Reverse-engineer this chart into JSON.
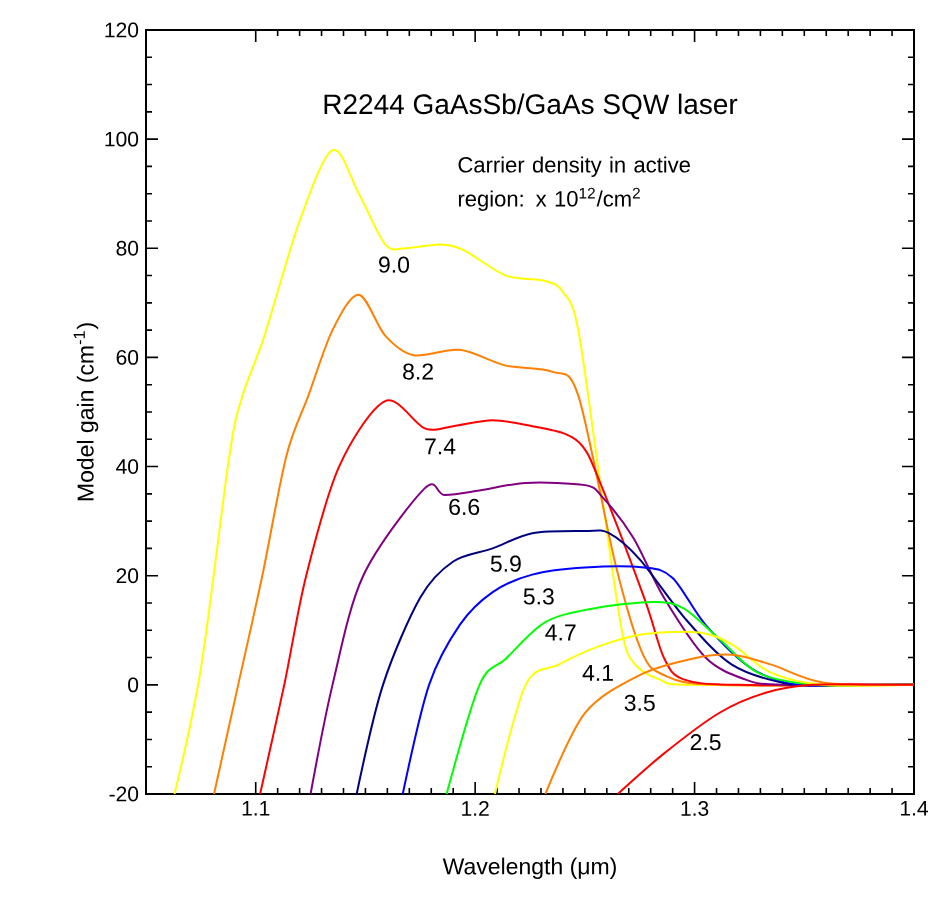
{
  "chart_data": {
    "type": "line",
    "title": "R2244 GaAsSb/GaAs SQW laser",
    "xlabel": "Wavelength (μm)",
    "ylabel": "Model gain (cm$^{-1}$)",
    "xlim": [
      1.05,
      1.4
    ],
    "xticks": [
      1.1,
      1.2,
      1.3,
      1.4
    ],
    "ylim": [
      -20,
      120
    ],
    "yticks": [
      -20,
      0,
      20,
      40,
      60,
      80,
      100,
      120
    ],
    "series": [
      {
        "name": "9.0",
        "color": "#ffff00",
        "x": [
          1.063,
          1.075,
          1.088,
          1.094,
          1.104,
          1.12,
          1.135,
          1.147,
          1.159,
          1.168,
          1.184,
          1.195,
          1.214,
          1.232,
          1.24,
          1.247,
          1.258,
          1.267,
          1.273,
          1.284,
          1.3,
          1.4
        ],
        "values": [
          -20,
          3,
          42,
          53,
          64,
          85,
          98,
          90,
          80.7,
          80,
          80.7,
          79.6,
          75,
          74,
          72,
          65,
          34,
          9.6,
          3.7,
          1,
          0,
          0
        ]
      },
      {
        "name": "8.2",
        "color": "#ff8000",
        "x": [
          1.081,
          1.092,
          1.103,
          1.114,
          1.124,
          1.135,
          1.147,
          1.159,
          1.172,
          1.193,
          1.214,
          1.235,
          1.247,
          1.264,
          1.276,
          1.286,
          1.31,
          1.4
        ],
        "values": [
          -20,
          0,
          20,
          42,
          53,
          65,
          71.5,
          64,
          60.4,
          61.4,
          58.5,
          57.4,
          53,
          22,
          6,
          1.8,
          0,
          0
        ]
      },
      {
        "name": "7.4",
        "color": "#ff0000",
        "x": [
          1.102,
          1.113,
          1.123,
          1.138,
          1.159,
          1.177,
          1.19,
          1.208,
          1.226,
          1.241,
          1.249,
          1.256,
          1.277,
          1.286,
          1.295,
          1.32,
          1.4
        ],
        "values": [
          -20,
          0,
          20,
          40,
          52,
          47,
          47.4,
          48.5,
          47.4,
          46,
          43.7,
          38,
          16,
          5,
          1,
          0,
          0
        ]
      },
      {
        "name": "6.6",
        "color": "#800080",
        "x": [
          1.125,
          1.135,
          1.149,
          1.177,
          1.186,
          1.202,
          1.223,
          1.25,
          1.258,
          1.272,
          1.286,
          1.305,
          1.323,
          1.34,
          1.4
        ],
        "values": [
          -20,
          0,
          20,
          36,
          34.8,
          35.6,
          37,
          36.6,
          34.4,
          27,
          16,
          5,
          1,
          0,
          0
        ]
      },
      {
        "name": "5.9",
        "color": "#000080",
        "x": [
          1.146,
          1.158,
          1.175,
          1.19,
          1.208,
          1.226,
          1.25,
          1.261,
          1.275,
          1.296,
          1.317,
          1.341,
          1.36,
          1.4
        ],
        "values": [
          -20,
          0,
          16,
          22.6,
          25,
          27.8,
          28.2,
          27.8,
          23,
          12,
          3.7,
          0.3,
          0,
          0
        ]
      },
      {
        "name": "5.3",
        "color": "#0000ff",
        "x": [
          1.167,
          1.179,
          1.193,
          1.208,
          1.226,
          1.25,
          1.277,
          1.29,
          1.305,
          1.326,
          1.347,
          1.37,
          1.4
        ],
        "values": [
          -20,
          0,
          11,
          17,
          20.2,
          21.5,
          21.5,
          19.6,
          11,
          3,
          0,
          0,
          0
        ]
      },
      {
        "name": "4.7",
        "color": "#00ff00",
        "x": [
          1.187,
          1.202,
          1.214,
          1.232,
          1.254,
          1.281,
          1.295,
          1.311,
          1.329,
          1.354,
          1.385,
          1.4
        ],
        "values": [
          -20,
          0,
          4.8,
          11.5,
          14,
          15.2,
          14,
          8.5,
          2.2,
          0,
          0,
          0
        ]
      },
      {
        "name": "4.1",
        "color": "#ffff00",
        "x": [
          1.209,
          1.223,
          1.238,
          1.256,
          1.277,
          1.302,
          1.317,
          1.335,
          1.359,
          1.4
        ],
        "values": [
          -20,
          0,
          3.7,
          7,
          9.3,
          9.6,
          7.4,
          2.2,
          0,
          0
        ]
      },
      {
        "name": "3.5",
        "color": "#ff8000",
        "x": [
          1.232,
          1.25,
          1.275,
          1.299,
          1.317,
          1.335,
          1.359,
          1.4
        ],
        "values": [
          -20,
          -5.2,
          1.8,
          4.8,
          5.5,
          3.7,
          0.4,
          0
        ]
      },
      {
        "name": "2.5",
        "color": "#ff0000",
        "x": [
          1.265,
          1.286,
          1.311,
          1.332,
          1.354,
          1.4
        ],
        "values": [
          -20,
          -12.6,
          -5.2,
          -1.5,
          0,
          0
        ]
      }
    ],
    "annotations": [
      "Carrier density in active region: x 10$^{12}$/cm$^{2}$"
    ]
  }
}
